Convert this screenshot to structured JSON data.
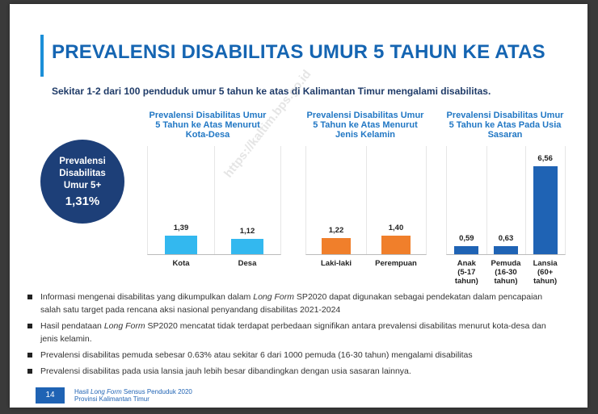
{
  "title": "PREVALENSI DISABILITAS UMUR 5 TAHUN KE ATAS",
  "subtitle": "Sekitar 1-2 dari 100 penduduk umur 5 tahun ke atas di Kalimantan Timur mengalami disabilitas.",
  "watermark": "https://kaltim.bps.go.id",
  "circle": {
    "label": "Prevalensi Disabilitas Umur 5+",
    "value": "1,31%"
  },
  "colors": {
    "primary": "#1565b2",
    "cyan": "#33b8ef",
    "orange": "#f07f2b",
    "blue": "#1f63b4",
    "navy": "#1d3f78"
  },
  "chart_data": [
    {
      "type": "bar",
      "title": "Prevalensi Disabilitas Umur 5 Tahun ke Atas Menurut Kota-Desa",
      "categories": [
        "Kota",
        "Desa"
      ],
      "values": [
        1.39,
        1.12
      ],
      "value_labels": [
        "1,39",
        "1,12"
      ],
      "ylim": [
        0,
        7
      ],
      "color": "#33b8ef"
    },
    {
      "type": "bar",
      "title": "Prevalensi Disabilitas Umur 5 Tahun ke Atas Menurut Jenis Kelamin",
      "categories": [
        "Laki-laki",
        "Perempuan"
      ],
      "values": [
        1.22,
        1.4
      ],
      "value_labels": [
        "1,22",
        "1,40"
      ],
      "ylim": [
        0,
        7
      ],
      "color": "#f07f2b"
    },
    {
      "type": "bar",
      "title": "Prevalensi Disabilitas Umur 5 Tahun ke Atas Pada Usia Sasaran",
      "categories": [
        "Anak (5-17 tahun)",
        "Pemuda (16-30 tahun)",
        "Lansia (60+ tahun)"
      ],
      "category_lines": [
        [
          "Anak",
          "(5-17",
          "tahun)"
        ],
        [
          "Pemuda",
          "(16-30",
          "tahun)"
        ],
        [
          "Lansia",
          "(60+",
          "tahun)"
        ]
      ],
      "values": [
        0.59,
        0.63,
        6.56
      ],
      "value_labels": [
        "0,59",
        "0,63",
        "6,56"
      ],
      "ylim": [
        0,
        7
      ],
      "color": "#1f63b4"
    }
  ],
  "bullets": [
    [
      {
        "t": "Informasi mengenai disabilitas yang dikumpulkan dalam "
      },
      {
        "t": "Long Form",
        "i": true
      },
      {
        "t": " SP2020 dapat digunakan sebagai pendekatan dalam pencapaian salah satu target pada rencana aksi nasional penyandang disabilitas 2021-2024"
      }
    ],
    [
      {
        "t": "Hasil pendataan "
      },
      {
        "t": "Long Form",
        "i": true
      },
      {
        "t": " SP2020 mencatat tidak terdapat perbedaan signifikan antara prevalensi disabilitas menurut kota-desa dan jenis kelamin."
      }
    ],
    [
      {
        "t": "Prevalensi disabilitas pemuda sebesar 0.63% atau sekitar 6 dari 1000 pemuda (16-30 tahun) mengalami disabilitas"
      }
    ],
    [
      {
        "t": "Prevalensi disabilitas pada usia lansia jauh lebih besar dibandingkan dengan usia sasaran lainnya."
      }
    ]
  ],
  "footer": {
    "page_number": "14",
    "line1_pre": "Hasil ",
    "line1_italic": "Long Form",
    "line1_post": " Sensus Penduduk 2020",
    "line2": "Provinsi Kalimantan Timur"
  }
}
